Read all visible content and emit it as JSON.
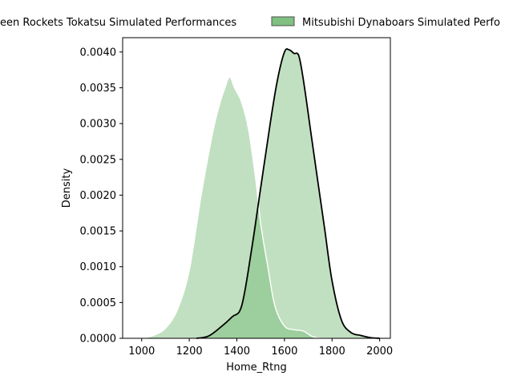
{
  "chart_data": {
    "type": "area",
    "title": "",
    "xlabel": "Home_Rtng",
    "ylabel": "Density",
    "xlim": [
      920,
      2045
    ],
    "ylim": [
      0,
      0.0042
    ],
    "x_ticks": [
      1000,
      1200,
      1400,
      1600,
      1800,
      2000
    ],
    "y_ticks": [
      0,
      0.0005,
      0.001,
      0.0015,
      0.002,
      0.0025,
      0.003,
      0.0035,
      0.004
    ],
    "x_tick_labels": [
      "1000",
      "1200",
      "1400",
      "1600",
      "1800",
      "2000"
    ],
    "y_tick_labels": [
      "0.0000",
      "0.0005",
      "0.0010",
      "0.0015",
      "0.0020",
      "0.0025",
      "0.0030",
      "0.0035",
      "0.0040"
    ],
    "grid": false,
    "legend_placement": "top-center",
    "series": [
      {
        "name": "Green Rockets Tokatsu Simulated Performances",
        "display_name": "een Rockets Tokatsu Simulated Performances",
        "fill_color": "#c1e0c1",
        "edge_color": "#ffffff",
        "x": [
          1000,
          1050,
          1100,
          1150,
          1200,
          1250,
          1300,
          1330,
          1350,
          1370,
          1390,
          1420,
          1450,
          1480,
          1500,
          1530,
          1560,
          1600,
          1640,
          1680,
          1720,
          1760,
          1800
        ],
        "y": [
          0.0,
          4e-05,
          0.00014,
          0.0004,
          0.00095,
          0.002,
          0.0029,
          0.0033,
          0.0035,
          0.00365,
          0.0035,
          0.0033,
          0.0029,
          0.0022,
          0.0016,
          0.001,
          0.00045,
          0.00017,
          0.00012,
          0.0001,
          2e-05,
          0.0,
          0.0
        ]
      },
      {
        "name": "Mitsubishi Dynaboars Simulated Performances",
        "display_name": "Mitsubishi Dynaboars Simulated Perfo",
        "fill_color": "#c1e0c1",
        "edge_color": "#000000",
        "legend_patch_color": "#80c080",
        "x": [
          1230,
          1280,
          1330,
          1380,
          1420,
          1460,
          1500,
          1540,
          1570,
          1600,
          1620,
          1640,
          1660,
          1680,
          1710,
          1740,
          1770,
          1800,
          1840,
          1880,
          1920,
          1960,
          2000
        ],
        "y": [
          0.0,
          3e-05,
          0.00015,
          0.0003,
          0.00045,
          0.0012,
          0.0021,
          0.003,
          0.0036,
          0.004,
          0.00403,
          0.00398,
          0.00395,
          0.0036,
          0.0029,
          0.0022,
          0.0015,
          0.0008,
          0.00025,
          8e-05,
          4e-05,
          1e-05,
          0.0
        ]
      }
    ]
  }
}
